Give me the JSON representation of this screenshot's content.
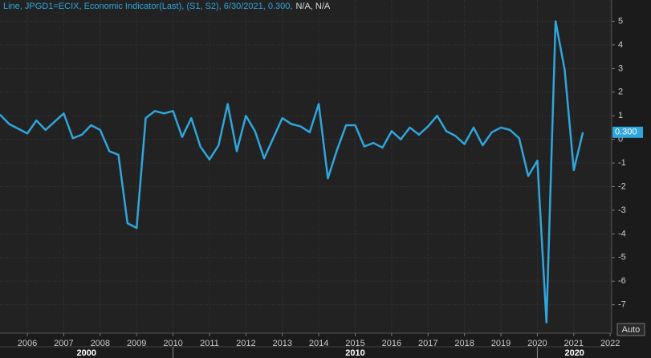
{
  "chart_data": {
    "type": "line",
    "header": {
      "series_label": "Line, JPGD1=ECIX, Economic Indicator(Last), (S1, S2), 6/30/2021, 0.300,",
      "extra": "N/A, N/A"
    },
    "last_value_tag": "0.300",
    "button": "Auto",
    "x": [
      2005.25,
      2005.5,
      2005.75,
      2006,
      2006.25,
      2006.5,
      2006.75,
      2007,
      2007.25,
      2007.5,
      2007.75,
      2008,
      2008.25,
      2008.5,
      2008.75,
      2009,
      2009.25,
      2009.5,
      2009.75,
      2010,
      2010.25,
      2010.5,
      2010.75,
      2011,
      2011.25,
      2011.5,
      2011.75,
      2012,
      2012.25,
      2012.5,
      2012.75,
      2013,
      2013.25,
      2013.5,
      2013.75,
      2014,
      2014.25,
      2014.5,
      2014.75,
      2015,
      2015.25,
      2015.5,
      2015.75,
      2016,
      2016.25,
      2016.5,
      2016.75,
      2017,
      2017.25,
      2017.5,
      2017.75,
      2018,
      2018.25,
      2018.5,
      2018.75,
      2019,
      2019.25,
      2019.5,
      2019.75,
      2020,
      2020.25,
      2020.5,
      2020.75,
      2021,
      2021.25
    ],
    "series": [
      {
        "name": "JPGD1=ECIX",
        "color": "#2fa6dc",
        "values": [
          1.05,
          0.65,
          0.45,
          0.25,
          0.8,
          0.4,
          0.75,
          1.1,
          0.05,
          0.2,
          0.6,
          0.4,
          -0.5,
          -0.65,
          -3.55,
          -3.75,
          0.9,
          1.2,
          1.1,
          1.2,
          0.1,
          0.9,
          -0.3,
          -0.85,
          -0.25,
          1.5,
          -0.5,
          1.0,
          0.35,
          -0.8,
          0.05,
          0.9,
          0.65,
          0.55,
          0.3,
          1.5,
          -1.65,
          -0.45,
          0.6,
          0.6,
          -0.3,
          -0.15,
          -0.35,
          0.35,
          0.0,
          0.5,
          0.2,
          0.55,
          1.0,
          0.35,
          0.15,
          -0.2,
          0.5,
          -0.25,
          0.3,
          0.5,
          0.4,
          0.05,
          -1.55,
          -0.9,
          -7.75,
          5.0,
          2.95,
          -1.3,
          0.3
        ]
      }
    ],
    "xlim": [
      2005.25,
      2022.04
    ],
    "xticks": [
      2006,
      2007,
      2008,
      2009,
      2010,
      2011,
      2012,
      2013,
      2014,
      2015,
      2016,
      2017,
      2018,
      2019,
      2020,
      2021,
      2022
    ],
    "x_decades": [
      2000,
      2010,
      2020
    ],
    "ylim": [
      -8.2,
      5.9
    ],
    "yticks": [
      -7,
      -6,
      -5,
      -4,
      -3,
      -2,
      -1,
      0,
      1,
      2,
      3,
      4,
      5
    ],
    "grid": true
  }
}
